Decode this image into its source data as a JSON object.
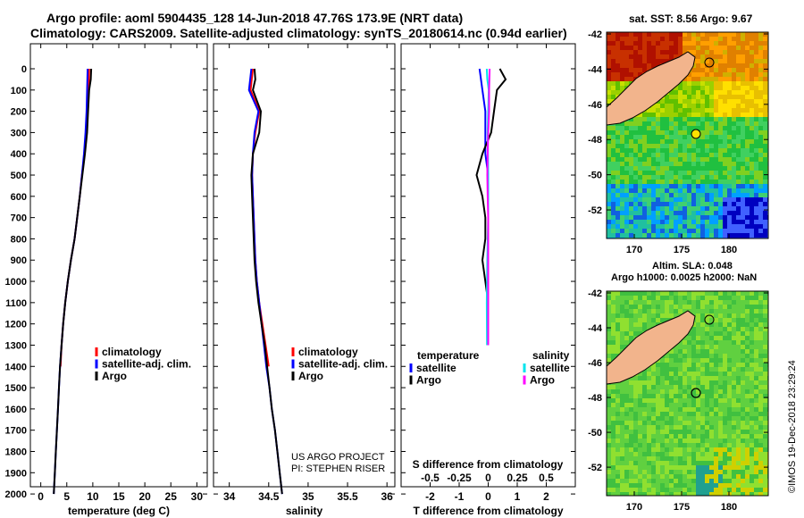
{
  "header": {
    "title_line1": "Argo profile: aoml 5904435_128 14-Jun-2018 47.76S 173.9E (NRT data)",
    "title_line2": "Climatology: CARS2009. Satellite-adjusted climatology: synTS_20180614.nc (0.94d earlier)"
  },
  "map_sst": {
    "label": "sat. SST: 8.56 Argo: 9.67",
    "lat_ticks": [
      "-42",
      "-44",
      "-46",
      "-48",
      "-50",
      "-52"
    ],
    "lon_ticks": [
      "170",
      "175",
      "180"
    ]
  },
  "map_sla": {
    "label_line1": "Altim. SLA: 0.048",
    "label_line2": "Argo h1000: 0.0025 h2000: NaN",
    "lat_ticks": [
      "-42",
      "-44",
      "-46",
      "-48",
      "-50",
      "-52"
    ],
    "lon_ticks": [
      "170",
      "175",
      "180"
    ]
  },
  "credit": {
    "project": "US ARGO PROJECT",
    "pi": "PI: STEPHEN RISER",
    "stamp": "©IMOS 19-Dec-2018 23:29:24"
  },
  "colors": {
    "climatology": "#ff0000",
    "satellite": "#0000ff",
    "argo": "#000000",
    "salinity_satellite": "#00e5ee",
    "salinity_argo": "#ff00ff",
    "land": "#f2b48c"
  },
  "chart_data": [
    {
      "type": "line",
      "name": "temperature-panel",
      "xlabel": "temperature (deg C)",
      "xlim": [
        -2,
        32
      ],
      "ylim": [
        2050,
        0
      ],
      "xticks": [
        0,
        5,
        10,
        15,
        20,
        25,
        30
      ],
      "depth_ticks": [
        0,
        100,
        200,
        300,
        400,
        500,
        600,
        700,
        800,
        900,
        1000,
        1100,
        1200,
        1300,
        1400,
        1500,
        1600,
        1700,
        1800,
        1900,
        2000
      ],
      "legend": [
        "climatology",
        "satellite-adj. clim.",
        "Argo"
      ],
      "series": [
        {
          "name": "climatology",
          "color": "red",
          "points": [
            [
              9.3,
              0
            ],
            [
              9.2,
              100
            ],
            [
              9.0,
              200
            ],
            [
              8.7,
              300
            ],
            [
              8.4,
              400
            ],
            [
              7.9,
              500
            ],
            [
              7.5,
              600
            ],
            [
              7.0,
              700
            ],
            [
              6.5,
              800
            ],
            [
              5.8,
              900
            ],
            [
              5.2,
              1000
            ],
            [
              4.7,
              1100
            ],
            [
              4.3,
              1200
            ],
            [
              4.0,
              1300
            ],
            [
              3.8,
              1400
            ]
          ]
        },
        {
          "name": "satellite-adj. clim.",
          "color": "blue",
          "points": [
            [
              9.0,
              0
            ],
            [
              8.9,
              100
            ],
            [
              8.8,
              200
            ],
            [
              8.6,
              300
            ],
            [
              8.3,
              400
            ],
            [
              7.9,
              500
            ],
            [
              7.5,
              600
            ],
            [
              7.0,
              700
            ],
            [
              6.5,
              800
            ],
            [
              5.8,
              900
            ],
            [
              5.2,
              1000
            ],
            [
              4.7,
              1100
            ],
            [
              4.3,
              1200
            ],
            [
              4.0,
              1300
            ],
            [
              3.7,
              1400
            ],
            [
              3.5,
              1500
            ],
            [
              3.3,
              1600
            ],
            [
              3.1,
              1700
            ],
            [
              2.9,
              1800
            ],
            [
              2.7,
              1900
            ],
            [
              2.5,
              2000
            ]
          ]
        },
        {
          "name": "Argo",
          "color": "black",
          "points": [
            [
              9.7,
              0
            ],
            [
              9.6,
              50
            ],
            [
              9.3,
              100
            ],
            [
              9.1,
              200
            ],
            [
              8.9,
              300
            ],
            [
              8.5,
              400
            ],
            [
              8.0,
              500
            ],
            [
              7.5,
              600
            ],
            [
              7.0,
              700
            ],
            [
              6.5,
              800
            ],
            [
              5.8,
              900
            ],
            [
              5.2,
              1000
            ],
            [
              4.7,
              1100
            ],
            [
              4.3,
              1200
            ],
            [
              4.0,
              1300
            ],
            [
              3.7,
              1400
            ],
            [
              3.5,
              1500
            ],
            [
              3.3,
              1600
            ],
            [
              3.1,
              1700
            ],
            [
              2.9,
              1800
            ],
            [
              2.7,
              1900
            ],
            [
              2.5,
              2000
            ]
          ]
        }
      ]
    },
    {
      "type": "line",
      "name": "salinity-panel",
      "xlabel": "salinity",
      "xlim": [
        33.8,
        36.1
      ],
      "ylim": [
        2050,
        0
      ],
      "xticks": [
        34,
        34.5,
        35,
        35.5,
        36
      ],
      "legend": [
        "climatology",
        "satellite-adj. clim.",
        "Argo"
      ],
      "series": [
        {
          "name": "climatology",
          "color": "red",
          "points": [
            [
              34.3,
              0
            ],
            [
              34.27,
              100
            ],
            [
              34.38,
              200
            ],
            [
              34.33,
              300
            ],
            [
              34.3,
              400
            ],
            [
              34.29,
              500
            ],
            [
              34.3,
              600
            ],
            [
              34.31,
              700
            ],
            [
              34.32,
              800
            ],
            [
              34.33,
              900
            ],
            [
              34.35,
              1000
            ],
            [
              34.38,
              1100
            ],
            [
              34.42,
              1200
            ],
            [
              34.46,
              1300
            ],
            [
              34.5,
              1400
            ]
          ]
        },
        {
          "name": "satellite-adj. clim.",
          "color": "blue",
          "points": [
            [
              34.28,
              0
            ],
            [
              34.25,
              100
            ],
            [
              34.37,
              200
            ],
            [
              34.32,
              300
            ],
            [
              34.3,
              400
            ],
            [
              34.29,
              500
            ],
            [
              34.3,
              600
            ],
            [
              34.31,
              700
            ],
            [
              34.32,
              800
            ],
            [
              34.33,
              900
            ],
            [
              34.35,
              1000
            ],
            [
              34.38,
              1100
            ],
            [
              34.41,
              1200
            ],
            [
              34.44,
              1300
            ],
            [
              34.47,
              1400
            ],
            [
              34.51,
              1500
            ],
            [
              34.54,
              1600
            ],
            [
              34.58,
              1700
            ],
            [
              34.61,
              1800
            ],
            [
              34.64,
              1900
            ],
            [
              34.67,
              2000
            ]
          ]
        },
        {
          "name": "Argo",
          "color": "black",
          "points": [
            [
              34.32,
              0
            ],
            [
              34.33,
              50
            ],
            [
              34.3,
              100
            ],
            [
              34.4,
              200
            ],
            [
              34.38,
              300
            ],
            [
              34.3,
              400
            ],
            [
              34.28,
              500
            ],
            [
              34.29,
              600
            ],
            [
              34.3,
              700
            ],
            [
              34.31,
              800
            ],
            [
              34.32,
              900
            ],
            [
              34.34,
              1000
            ],
            [
              34.37,
              1100
            ],
            [
              34.41,
              1200
            ],
            [
              34.45,
              1300
            ],
            [
              34.48,
              1400
            ],
            [
              34.51,
              1500
            ],
            [
              34.54,
              1600
            ],
            [
              34.58,
              1700
            ],
            [
              34.61,
              1800
            ],
            [
              34.64,
              1900
            ],
            [
              34.67,
              2000
            ]
          ]
        }
      ]
    },
    {
      "type": "line",
      "name": "difference-panel",
      "xlabel": "T difference from climatology",
      "xlabel_top": "S difference from climatology",
      "xlim": [
        -3,
        3
      ],
      "slim": [
        -0.75,
        0.75
      ],
      "ylim": [
        2050,
        0
      ],
      "xticks": [
        -2,
        -1,
        0,
        1,
        2
      ],
      "sticks": [
        "-0.5",
        "-0.25",
        "0",
        "0.25",
        "0.5"
      ],
      "legend_temperature_title": "temperature",
      "legend_salinity_title": "salinity",
      "legend_entries": [
        "satellite",
        "Argo"
      ],
      "series": [
        {
          "name": "temperature satellite",
          "color": "blue",
          "points": [
            [
              -0.3,
              0
            ],
            [
              -0.2,
              100
            ],
            [
              -0.1,
              200
            ],
            [
              -0.1,
              300
            ],
            [
              -0.1,
              400
            ],
            [
              0.0,
              500
            ],
            [
              0.0,
              600
            ],
            [
              0.0,
              700
            ],
            [
              0.0,
              800
            ],
            [
              0.0,
              900
            ],
            [
              0.0,
              1000
            ],
            [
              0.0,
              1100
            ],
            [
              0.0,
              1200
            ],
            [
              0.0,
              1300
            ]
          ]
        },
        {
          "name": "temperature Argo",
          "color": "black",
          "points": [
            [
              0.4,
              0
            ],
            [
              0.6,
              50
            ],
            [
              0.3,
              100
            ],
            [
              0.2,
              200
            ],
            [
              0.1,
              300
            ],
            [
              -0.2,
              400
            ],
            [
              -0.4,
              500
            ],
            [
              -0.2,
              600
            ],
            [
              -0.1,
              700
            ],
            [
              -0.1,
              800
            ],
            [
              -0.2,
              900
            ],
            [
              -0.1,
              1000
            ],
            [
              0.0,
              1100
            ],
            [
              0.0,
              1200
            ]
          ]
        },
        {
          "name": "salinity satellite",
          "color": "cyan",
          "points": [
            [
              -0.05,
              0
            ],
            [
              -0.03,
              50
            ],
            [
              0.02,
              100
            ],
            [
              0.0,
              200
            ],
            [
              -0.02,
              300
            ],
            [
              0.0,
              500
            ],
            [
              0.0,
              700
            ],
            [
              -0.03,
              900
            ],
            [
              -0.05,
              1100
            ],
            [
              -0.04,
              1300
            ]
          ]
        },
        {
          "name": "salinity Argo",
          "color": "magenta",
          "points": [
            [
              0.05,
              0
            ],
            [
              0.04,
              50
            ],
            [
              0.03,
              100
            ],
            [
              0.03,
              200
            ],
            [
              0.0,
              300
            ],
            [
              -0.02,
              400
            ],
            [
              -0.03,
              500
            ],
            [
              -0.02,
              600
            ],
            [
              0.0,
              700
            ],
            [
              0.0,
              900
            ],
            [
              0.0,
              1100
            ],
            [
              0.0,
              1300
            ]
          ]
        }
      ]
    }
  ]
}
